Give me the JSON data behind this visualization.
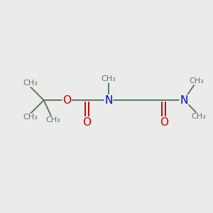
{
  "bg_color": "#ebebeb",
  "bond_color": "#5a7a5a",
  "o_color": "#cc0000",
  "n_color": "#0000cc",
  "font_size": 9.5,
  "bond_width": 1.4,
  "figsize": [
    3.0,
    3.0
  ],
  "dpi": 100,
  "xlim": [
    0,
    10
  ],
  "ylim": [
    0,
    10
  ]
}
